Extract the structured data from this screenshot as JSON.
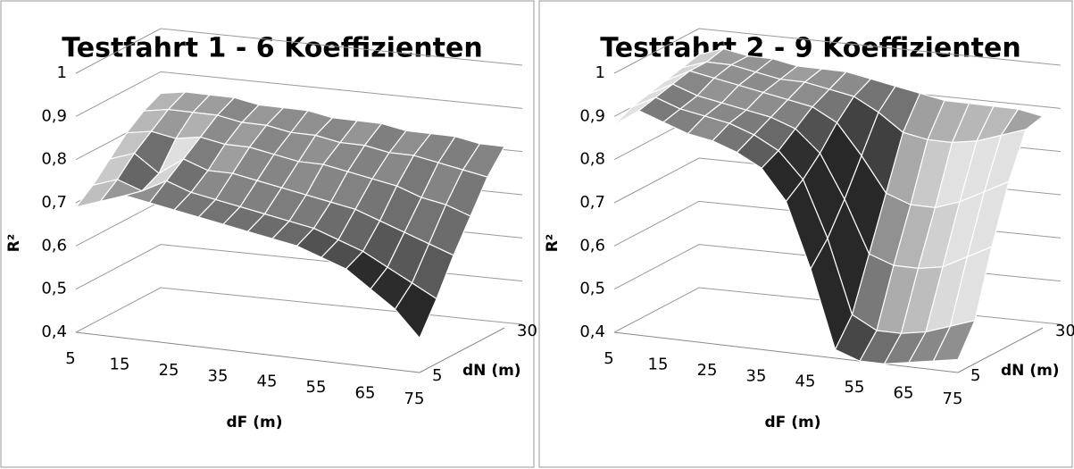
{
  "chart_data": [
    {
      "type": "surface",
      "title": "Testfahrt 1 - 6 Koeffizienten",
      "xlabel": "dF (m)",
      "ylabel": "dN (m)",
      "zlabel": "R²",
      "categories": [
        "5",
        null,
        "15",
        null,
        "25",
        null,
        "35",
        null,
        "45",
        null,
        "55",
        null,
        "65",
        null,
        "75"
      ],
      "depth_categories": [
        "5",
        null,
        null,
        null,
        null,
        "30"
      ],
      "zlim": [
        0.4,
        1
      ],
      "zticks": [
        {
          "value": 0.4,
          "label": "0,4"
        },
        {
          "value": 0.5,
          "label": "0,5"
        },
        {
          "value": 0.6,
          "label": "0,6"
        },
        {
          "value": 0.7,
          "label": "0,7"
        },
        {
          "value": 0.8,
          "label": "0,8"
        },
        {
          "value": 0.9,
          "label": "0,9"
        },
        1
      ],
      "series": [
        {
          "values": [
            0.69,
            0.71,
            0.73,
            0.72,
            0.71,
            0.7,
            0.69,
            0.68,
            0.67,
            0.66,
            0.64,
            0.62,
            0.58,
            0.54,
            0.48
          ]
        },
        {
          "values": [
            0.72,
            0.74,
            0.72,
            0.75,
            0.73,
            0.72,
            0.71,
            0.7,
            0.69,
            0.68,
            0.66,
            0.64,
            0.61,
            0.58,
            0.55
          ]
        },
        {
          "values": [
            0.76,
            0.78,
            0.74,
            0.78,
            0.76,
            0.76,
            0.75,
            0.74,
            0.73,
            0.72,
            0.71,
            0.69,
            0.67,
            0.65,
            0.63
          ]
        },
        {
          "values": [
            0.8,
            0.81,
            0.8,
            0.81,
            0.8,
            0.8,
            0.79,
            0.78,
            0.78,
            0.77,
            0.76,
            0.75,
            0.73,
            0.72,
            0.7
          ]
        },
        {
          "values": [
            0.83,
            0.84,
            0.84,
            0.84,
            0.83,
            0.83,
            0.82,
            0.82,
            0.81,
            0.81,
            0.8,
            0.8,
            0.79,
            0.78,
            0.77
          ]
        },
        {
          "values": [
            0.85,
            0.86,
            0.86,
            0.86,
            0.85,
            0.85,
            0.85,
            0.84,
            0.84,
            0.84,
            0.83,
            0.83,
            0.83,
            0.82,
            0.82
          ]
        }
      ]
    },
    {
      "type": "surface",
      "title": "Testfahrt 2 - 9 Koeffizienten",
      "xlabel": "dF (m)",
      "ylabel": "dN (m)",
      "zlabel": "R²",
      "categories": [
        "5",
        null,
        "15",
        null,
        "25",
        null,
        "35",
        null,
        "45",
        null,
        "55",
        null,
        "65",
        null,
        "75"
      ],
      "depth_categories": [
        "5",
        null,
        null,
        null,
        null,
        "30"
      ],
      "zlim": [
        0.4,
        1
      ],
      "zticks": [
        {
          "value": 0.4,
          "label": "0,4"
        },
        {
          "value": 0.5,
          "label": "0,5"
        },
        {
          "value": 0.6,
          "label": "0,6"
        },
        {
          "value": 0.7,
          "label": "0,7"
        },
        {
          "value": 0.8,
          "label": "0,8"
        },
        {
          "value": 0.9,
          "label": "0,9"
        },
        1
      ],
      "series": [
        {
          "values": [
            0.88,
            0.92,
            0.9,
            0.88,
            0.87,
            0.85,
            0.82,
            0.75,
            0.6,
            0.42,
            0.4,
            0.4,
            0.41,
            0.42,
            0.43
          ]
        },
        {
          "values": [
            0.9,
            0.93,
            0.91,
            0.9,
            0.89,
            0.87,
            0.84,
            0.78,
            0.65,
            0.48,
            0.45,
            0.45,
            0.46,
            0.48,
            0.5
          ]
        },
        {
          "values": [
            0.91,
            0.94,
            0.92,
            0.91,
            0.9,
            0.89,
            0.87,
            0.82,
            0.72,
            0.6,
            0.58,
            0.58,
            0.59,
            0.62,
            0.65
          ]
        },
        {
          "values": [
            0.92,
            0.95,
            0.94,
            0.93,
            0.92,
            0.91,
            0.9,
            0.87,
            0.8,
            0.72,
            0.7,
            0.7,
            0.72,
            0.75,
            0.78
          ]
        },
        {
          "values": [
            0.93,
            0.95,
            0.95,
            0.94,
            0.93,
            0.93,
            0.92,
            0.91,
            0.88,
            0.84,
            0.83,
            0.83,
            0.84,
            0.86,
            0.88
          ]
        },
        {
          "values": [
            0.94,
            0.96,
            0.95,
            0.95,
            0.94,
            0.94,
            0.94,
            0.93,
            0.92,
            0.91,
            0.9,
            0.9,
            0.9,
            0.9,
            0.89
          ]
        }
      ]
    }
  ]
}
